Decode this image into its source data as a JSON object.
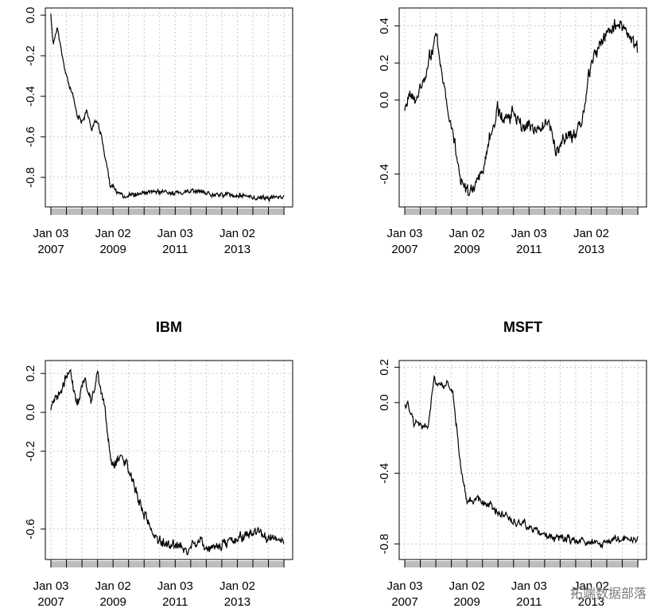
{
  "chart_data": [
    {
      "type": "line",
      "title": "",
      "ylim": [
        -0.93,
        0.02
      ],
      "yticks": [
        0.0,
        -0.2,
        -0.4,
        -0.6,
        -0.8
      ],
      "xlim": [
        2007.0,
        2014.6
      ],
      "xticks": [
        {
          "x": 2007.0,
          "label1": "Jan 03",
          "label2": "2007"
        },
        {
          "x": 2009.0,
          "label1": "Jan 02",
          "label2": "2009"
        },
        {
          "x": 2011.0,
          "label1": "Jan 03",
          "label2": "2011"
        },
        {
          "x": 2013.0,
          "label1": "Jan 02",
          "label2": "2013"
        }
      ],
      "grid": true,
      "keypoints": [
        [
          2007.0,
          0.0
        ],
        [
          2007.08,
          -0.15
        ],
        [
          2007.2,
          -0.05
        ],
        [
          2007.35,
          -0.2
        ],
        [
          2007.5,
          -0.3
        ],
        [
          2007.7,
          -0.4
        ],
        [
          2007.85,
          -0.5
        ],
        [
          2008.0,
          -0.52
        ],
        [
          2008.15,
          -0.47
        ],
        [
          2008.3,
          -0.56
        ],
        [
          2008.45,
          -0.52
        ],
        [
          2008.6,
          -0.58
        ],
        [
          2008.75,
          -0.7
        ],
        [
          2008.9,
          -0.83
        ],
        [
          2009.1,
          -0.87
        ],
        [
          2009.4,
          -0.89
        ],
        [
          2010.0,
          -0.88
        ],
        [
          2010.6,
          -0.87
        ],
        [
          2011.0,
          -0.88
        ],
        [
          2011.6,
          -0.87
        ],
        [
          2012.2,
          -0.88
        ],
        [
          2013.0,
          -0.89
        ],
        [
          2013.6,
          -0.9
        ],
        [
          2014.2,
          -0.9
        ],
        [
          2014.5,
          -0.89
        ]
      ],
      "seed": 11,
      "noise": 0.01
    },
    {
      "type": "line",
      "title": "",
      "ylim": [
        -0.56,
        0.48
      ],
      "yticks": [
        0.4,
        0.2,
        0.0,
        -0.4
      ],
      "xlim": [
        2007.0,
        2014.6
      ],
      "xticks": [
        {
          "x": 2007.0,
          "label1": "Jan 03",
          "label2": "2007"
        },
        {
          "x": 2009.0,
          "label1": "Jan 02",
          "label2": "2009"
        },
        {
          "x": 2011.0,
          "label1": "Jan 03",
          "label2": "2011"
        },
        {
          "x": 2013.0,
          "label1": "Jan 02",
          "label2": "2013"
        }
      ],
      "grid": true,
      "keypoints": [
        [
          2007.0,
          -0.05
        ],
        [
          2007.2,
          0.02
        ],
        [
          2007.4,
          0.0
        ],
        [
          2007.6,
          0.1
        ],
        [
          2007.85,
          0.25
        ],
        [
          2008.0,
          0.35
        ],
        [
          2008.15,
          0.2
        ],
        [
          2008.35,
          0.0
        ],
        [
          2008.55,
          -0.15
        ],
        [
          2008.7,
          -0.35
        ],
        [
          2008.9,
          -0.48
        ],
        [
          2009.1,
          -0.52
        ],
        [
          2009.3,
          -0.45
        ],
        [
          2009.5,
          -0.38
        ],
        [
          2009.75,
          -0.2
        ],
        [
          2010.0,
          -0.05
        ],
        [
          2010.25,
          -0.12
        ],
        [
          2010.5,
          -0.05
        ],
        [
          2010.8,
          -0.15
        ],
        [
          2011.0,
          -0.12
        ],
        [
          2011.3,
          -0.17
        ],
        [
          2011.6,
          -0.1
        ],
        [
          2011.9,
          -0.28
        ],
        [
          2012.2,
          -0.2
        ],
        [
          2012.5,
          -0.2
        ],
        [
          2012.7,
          -0.12
        ],
        [
          2012.85,
          0.05
        ],
        [
          2013.0,
          0.2
        ],
        [
          2013.3,
          0.3
        ],
        [
          2013.6,
          0.38
        ],
        [
          2013.9,
          0.42
        ],
        [
          2014.2,
          0.33
        ],
        [
          2014.5,
          0.27
        ]
      ],
      "seed": 23,
      "noise": 0.028
    },
    {
      "type": "line",
      "title": "IBM",
      "ylim": [
        -0.74,
        0.25
      ],
      "yticks": [
        0.2,
        0.0,
        -0.2,
        -0.6
      ],
      "xlim": [
        2007.0,
        2014.6
      ],
      "xticks": [
        {
          "x": 2007.0,
          "label1": "Jan 03",
          "label2": "2007"
        },
        {
          "x": 2009.0,
          "label1": "Jan 02",
          "label2": "2009"
        },
        {
          "x": 2011.0,
          "label1": "Jan 03",
          "label2": "2011"
        },
        {
          "x": 2013.0,
          "label1": "Jan 02",
          "label2": "2013"
        }
      ],
      "grid": true,
      "keypoints": [
        [
          2007.0,
          0.0
        ],
        [
          2007.3,
          0.1
        ],
        [
          2007.6,
          0.22
        ],
        [
          2007.85,
          0.05
        ],
        [
          2008.1,
          0.18
        ],
        [
          2008.3,
          0.05
        ],
        [
          2008.5,
          0.2
        ],
        [
          2008.7,
          0.05
        ],
        [
          2008.85,
          -0.15
        ],
        [
          2009.0,
          -0.3
        ],
        [
          2009.2,
          -0.22
        ],
        [
          2009.45,
          -0.25
        ],
        [
          2009.7,
          -0.4
        ],
        [
          2010.0,
          -0.52
        ],
        [
          2010.3,
          -0.63
        ],
        [
          2010.6,
          -0.67
        ],
        [
          2011.0,
          -0.68
        ],
        [
          2011.4,
          -0.7
        ],
        [
          2011.8,
          -0.67
        ],
        [
          2012.1,
          -0.7
        ],
        [
          2012.5,
          -0.68
        ],
        [
          2012.9,
          -0.65
        ],
        [
          2013.3,
          -0.63
        ],
        [
          2013.7,
          -0.62
        ],
        [
          2014.0,
          -0.64
        ],
        [
          2014.3,
          -0.66
        ],
        [
          2014.5,
          -0.67
        ]
      ],
      "seed": 37,
      "noise": 0.02
    },
    {
      "type": "line",
      "title": "MSFT",
      "ylim": [
        -0.87,
        0.22
      ],
      "yticks": [
        0.2,
        0.0,
        -0.4,
        -0.8
      ],
      "xlim": [
        2007.0,
        2014.6
      ],
      "xticks": [
        {
          "x": 2007.0,
          "label1": "Jan 03",
          "label2": "2007"
        },
        {
          "x": 2009.0,
          "label1": "Jan 02",
          "label2": "2009"
        },
        {
          "x": 2011.0,
          "label1": "Jan 03",
          "label2": "2011"
        },
        {
          "x": 2013.0,
          "label1": "Jan 02",
          "label2": "2013"
        }
      ],
      "grid": true,
      "keypoints": [
        [
          2007.0,
          0.0
        ],
        [
          2007.15,
          -0.03
        ],
        [
          2007.3,
          -0.13
        ],
        [
          2007.55,
          -0.14
        ],
        [
          2007.75,
          -0.13
        ],
        [
          2007.85,
          0.0
        ],
        [
          2007.95,
          0.13
        ],
        [
          2008.15,
          0.1
        ],
        [
          2008.35,
          0.12
        ],
        [
          2008.55,
          0.05
        ],
        [
          2008.65,
          -0.1
        ],
        [
          2008.75,
          -0.3
        ],
        [
          2008.9,
          -0.45
        ],
        [
          2009.0,
          -0.55
        ],
        [
          2009.3,
          -0.56
        ],
        [
          2009.7,
          -0.58
        ],
        [
          2010.0,
          -0.62
        ],
        [
          2010.4,
          -0.66
        ],
        [
          2010.8,
          -0.68
        ],
        [
          2011.2,
          -0.72
        ],
        [
          2011.6,
          -0.75
        ],
        [
          2012.0,
          -0.77
        ],
        [
          2012.5,
          -0.78
        ],
        [
          2013.0,
          -0.8
        ],
        [
          2013.4,
          -0.8
        ],
        [
          2013.8,
          -0.78
        ],
        [
          2014.2,
          -0.76
        ],
        [
          2014.5,
          -0.78
        ]
      ],
      "seed": 51,
      "noise": 0.016
    }
  ],
  "watermark": "拓端数据部落",
  "colors": {
    "line": "#000000",
    "grid": "#bfbfbf",
    "rug": "#bdbdbd"
  }
}
